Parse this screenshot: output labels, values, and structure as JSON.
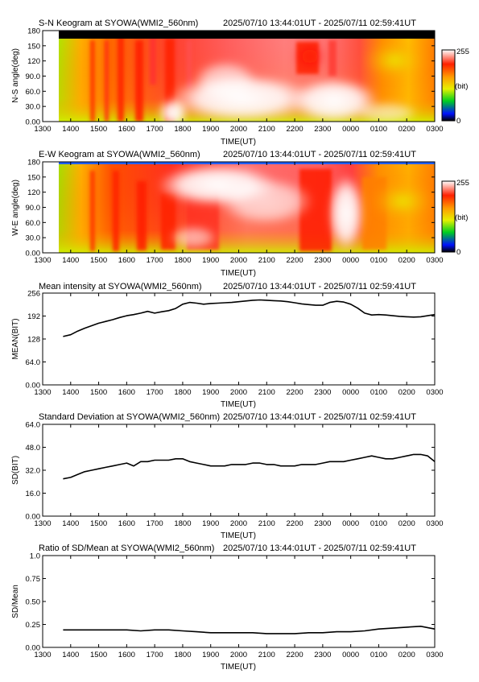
{
  "time_axis": {
    "ticks": [
      "1300",
      "1400",
      "1500",
      "1600",
      "1700",
      "1800",
      "1900",
      "2000",
      "2100",
      "2200",
      "2300",
      "0000",
      "0100",
      "0200",
      "0300"
    ],
    "label": "TIME(UT)"
  },
  "time_range": "2025/07/10 13:44:01UT - 2025/07/11 02:59:41UT",
  "colorbar": {
    "max_label": "255",
    "min_label": "0",
    "unit_label": "(bit)"
  },
  "colors": {
    "white": "#ffffff",
    "red": "#ff2000",
    "orange": "#ff9a00",
    "yellow": "#e6f000",
    "green": "#00d020",
    "blue": "#0010ff",
    "black": "#000000"
  },
  "chart_data": [
    {
      "type": "heatmap",
      "title": "S-N Keogram at SYOWA(WMI2_560nm)",
      "ylabel": "N-S angle(deg)",
      "yticks": [
        "0.00",
        "30.0",
        "60.0",
        "90.0",
        "120",
        "150",
        "180"
      ],
      "ylim": [
        0,
        180
      ],
      "xlim": [
        "1300",
        "0300"
      ],
      "data_start": "1344",
      "description_free": true
    },
    {
      "type": "heatmap",
      "title": "E-W Keogram at SYOWA(WMI2_560nm)",
      "ylabel": "W-E angle(deg)",
      "yticks": [
        "0.00",
        "30.0",
        "60.0",
        "90.0",
        "120",
        "150",
        "180"
      ],
      "ylim": [
        0,
        180
      ],
      "xlim": [
        "1300",
        "0300"
      ],
      "data_start": "1344"
    },
    {
      "type": "line",
      "title": "Mean intensity at SYOWA(WMI2_560nm)",
      "ylabel": "MEAN(BIT)",
      "yticks": [
        "0.00",
        "64.0",
        "128",
        "192",
        "256"
      ],
      "ylim": [
        0,
        256
      ],
      "x_hours": [
        13.73,
        14.0,
        14.25,
        14.5,
        14.75,
        15.0,
        15.25,
        15.5,
        15.75,
        16.0,
        16.25,
        16.5,
        16.75,
        17.0,
        17.25,
        17.5,
        17.75,
        18.0,
        18.25,
        18.5,
        18.75,
        19.0,
        19.25,
        19.5,
        19.75,
        20.0,
        20.25,
        20.5,
        20.75,
        21.0,
        21.25,
        21.5,
        21.75,
        22.0,
        22.25,
        22.5,
        22.75,
        23.0,
        23.25,
        23.5,
        23.75,
        24.0,
        24.25,
        24.5,
        24.75,
        25.0,
        25.25,
        25.5,
        25.75,
        26.0,
        26.25,
        26.5,
        26.75,
        27.0
      ],
      "values": [
        135,
        140,
        150,
        158,
        165,
        172,
        177,
        182,
        188,
        193,
        196,
        200,
        205,
        200,
        204,
        207,
        213,
        225,
        230,
        228,
        225,
        227,
        228,
        229,
        230,
        232,
        234,
        236,
        237,
        236,
        235,
        234,
        232,
        229,
        226,
        224,
        222,
        222,
        230,
        233,
        231,
        225,
        214,
        200,
        195,
        196,
        195,
        193,
        191,
        190,
        189,
        190,
        193,
        196
      ]
    },
    {
      "type": "line",
      "title": "Standard Deviation at SYOWA(WMI2_560nm)",
      "ylabel": "SD(BIT)",
      "yticks": [
        "0.00",
        "16.0",
        "32.0",
        "48.0",
        "64.0"
      ],
      "ylim": [
        0,
        64
      ],
      "x_hours": [
        13.73,
        14.0,
        14.25,
        14.5,
        14.75,
        15.0,
        15.25,
        15.5,
        15.75,
        16.0,
        16.25,
        16.5,
        16.75,
        17.0,
        17.25,
        17.5,
        17.75,
        18.0,
        18.25,
        18.5,
        18.75,
        19.0,
        19.25,
        19.5,
        19.75,
        20.0,
        20.25,
        20.5,
        20.75,
        21.0,
        21.25,
        21.5,
        21.75,
        22.0,
        22.25,
        22.5,
        22.75,
        23.0,
        23.25,
        23.5,
        23.75,
        24.0,
        24.25,
        24.5,
        24.75,
        25.0,
        25.25,
        25.5,
        25.75,
        26.0,
        26.25,
        26.5,
        26.75,
        27.0
      ],
      "values": [
        26,
        27,
        29,
        31,
        32,
        33,
        34,
        35,
        36,
        37,
        35,
        38,
        38,
        39,
        39,
        39,
        40,
        40,
        38,
        37,
        36,
        35,
        35,
        35,
        36,
        36,
        36,
        37,
        37,
        36,
        36,
        35,
        35,
        35,
        36,
        36,
        36,
        37,
        38,
        38,
        38,
        39,
        40,
        41,
        42,
        41,
        40,
        40,
        41,
        42,
        43,
        43,
        42,
        38
      ]
    },
    {
      "type": "line",
      "title": "Ratio of SD/Mean at SYOWA(WMI2_560nm)",
      "ylabel": "SD/Mean",
      "yticks": [
        "0.00",
        "0.25",
        "0.50",
        "0.75",
        "1.0"
      ],
      "ylim": [
        0,
        1
      ],
      "x_hours": [
        13.73,
        14.0,
        14.5,
        15.0,
        15.5,
        16.0,
        16.5,
        17.0,
        17.5,
        18.0,
        18.5,
        19.0,
        19.5,
        20.0,
        20.5,
        21.0,
        21.5,
        22.0,
        22.5,
        23.0,
        23.5,
        24.0,
        24.5,
        25.0,
        25.5,
        26.0,
        26.5,
        27.0
      ],
      "values": [
        0.19,
        0.19,
        0.19,
        0.19,
        0.19,
        0.19,
        0.18,
        0.19,
        0.19,
        0.18,
        0.17,
        0.16,
        0.16,
        0.16,
        0.16,
        0.15,
        0.15,
        0.15,
        0.16,
        0.16,
        0.17,
        0.17,
        0.18,
        0.2,
        0.21,
        0.22,
        0.23,
        0.2
      ]
    }
  ]
}
